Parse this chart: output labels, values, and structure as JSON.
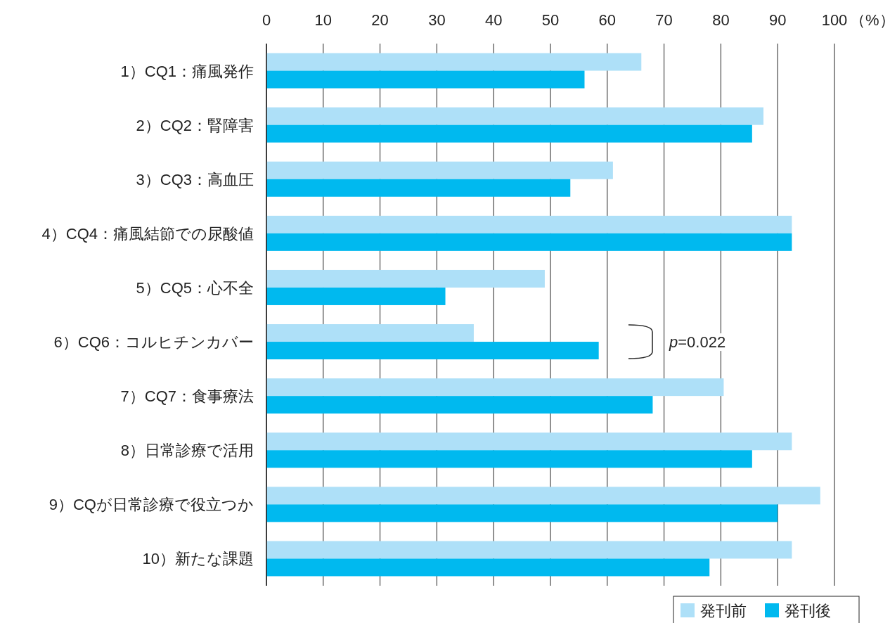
{
  "chart_data": {
    "type": "bar",
    "orientation": "horizontal",
    "categories": [
      "1）CQ1：痛風発作",
      "2）CQ2：腎障害",
      "3）CQ3：高血圧",
      "4）CQ4：痛風結節での尿酸値",
      "5）CQ5：心不全",
      "6）CQ6：コルヒチンカバー",
      "7）CQ7：食事療法",
      "8）日常診療で活用",
      "9）CQが日常診療で役立つか",
      "10）新たな課題"
    ],
    "series": [
      {
        "name": "発刊前",
        "color": "#aee0f8",
        "values": [
          66,
          87.5,
          61,
          92.5,
          49,
          36.5,
          80.5,
          92.5,
          97.5,
          92.5
        ]
      },
      {
        "name": "発刊後",
        "color": "#00b9ef",
        "values": [
          56,
          85.5,
          53.5,
          92.5,
          31.5,
          58.5,
          68,
          85.5,
          90,
          78
        ]
      }
    ],
    "xlim": [
      0,
      100
    ],
    "xticks": [
      0,
      10,
      20,
      30,
      40,
      50,
      60,
      70,
      80,
      90,
      100
    ],
    "xlabel": "（%）",
    "grid": "x",
    "legend": "bottom right",
    "annotations": [
      "p=0.022"
    ]
  }
}
